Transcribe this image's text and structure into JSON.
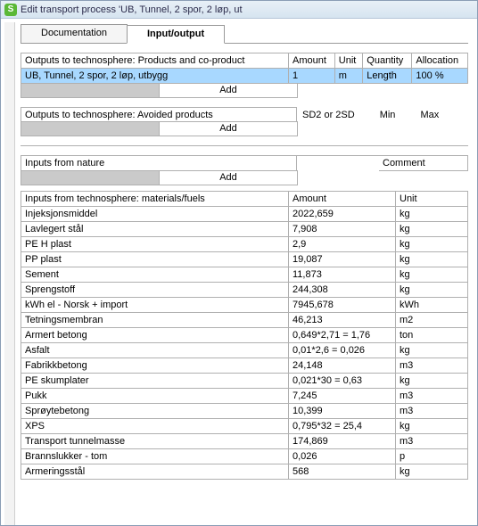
{
  "window": {
    "icon_letter": "S",
    "title": "Edit transport process 'UB, Tunnel, 2 spor, 2 løp, ut"
  },
  "tabs": {
    "documentation": "Documentation",
    "input_output": "Input/output"
  },
  "outputs_products": {
    "header_label": "Outputs to technosphere: Products and co-product",
    "header_amount": "Amount",
    "header_unit": "Unit",
    "header_quantity": "Quantity",
    "header_allocation": "Allocation",
    "row": {
      "name": "UB, Tunnel, 2 spor, 2 løp, utbygg",
      "amount": "1",
      "unit": "m",
      "quantity": "Length",
      "allocation": "100 %"
    },
    "add_label": "Add"
  },
  "outputs_avoided": {
    "header_label": "Outputs to technosphere: Avoided products",
    "sd": "SD2 or 2SD",
    "min": "Min",
    "max": "Max",
    "add_label": "Add"
  },
  "inputs_nature": {
    "header_label": "Inputs from nature",
    "comment_label": "Comment",
    "add_label": "Add"
  },
  "inputs_technosphere": {
    "header_label": "Inputs from technosphere: materials/fuels",
    "header_amount": "Amount",
    "header_unit": "Unit",
    "rows": [
      {
        "name": "Injeksjonsmiddel",
        "amount": "2022,659",
        "unit": "kg"
      },
      {
        "name": "Lavlegert stål",
        "amount": "7,908",
        "unit": "kg"
      },
      {
        "name": "PE H plast",
        "amount": "2,9",
        "unit": "kg"
      },
      {
        "name": "PP plast",
        "amount": "19,087",
        "unit": "kg"
      },
      {
        "name": "Sement",
        "amount": "11,873",
        "unit": "kg"
      },
      {
        "name": "Sprengstoff",
        "amount": "244,308",
        "unit": "kg"
      },
      {
        "name": "kWh el - Norsk + import",
        "amount": "7945,678",
        "unit": "kWh"
      },
      {
        "name": "Tetningsmembran",
        "amount": "46,213",
        "unit": "m2"
      },
      {
        "name": "Armert betong",
        "amount": "0,649*2,71 = 1,76",
        "unit": "ton"
      },
      {
        "name": "Asfalt",
        "amount": "0,01*2,6 = 0,026",
        "unit": "kg"
      },
      {
        "name": "Fabrikkbetong",
        "amount": "24,148",
        "unit": "m3"
      },
      {
        "name": "PE skumplater",
        "amount": "0,021*30 = 0,63",
        "unit": "kg"
      },
      {
        "name": "Pukk",
        "amount": "7,245",
        "unit": "m3"
      },
      {
        "name": "Sprøytebetong",
        "amount": "10,399",
        "unit": "m3"
      },
      {
        "name": "XPS",
        "amount": "0,795*32 = 25,4",
        "unit": "kg"
      },
      {
        "name": "Transport tunnelmasse",
        "amount": "174,869",
        "unit": "m3"
      },
      {
        "name": "Brannslukker - tom",
        "amount": "0,026",
        "unit": "p"
      },
      {
        "name": "Armeringsstål",
        "amount": "568",
        "unit": "kg"
      }
    ]
  }
}
